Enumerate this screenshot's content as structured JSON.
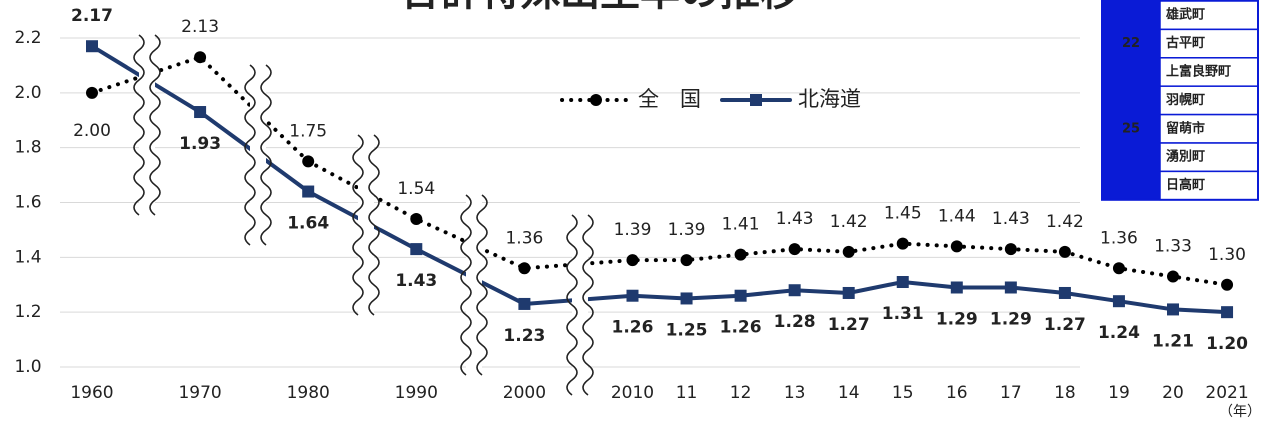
{
  "chart_data": {
    "type": "line",
    "title": "合計特殊出生率の推移",
    "x_label": "（年）",
    "categories": [
      "1960",
      "1970",
      "1980",
      "1990",
      "2000",
      "2010",
      "11",
      "12",
      "13",
      "14",
      "15",
      "16",
      "17",
      "18",
      "19",
      "20",
      "2021"
    ],
    "series": [
      {
        "name": "全　国",
        "color": "#000000",
        "style": "dotted",
        "marker": "circle",
        "values": [
          2.0,
          2.13,
          1.75,
          1.54,
          1.36,
          1.39,
          1.39,
          1.41,
          1.43,
          1.42,
          1.45,
          1.44,
          1.43,
          1.42,
          1.36,
          1.33,
          1.3
        ],
        "value_labels": [
          "2.00",
          "2.13",
          "1.75",
          "1.54",
          "1.36",
          "1.39",
          "1.39",
          "1.41",
          "1.43",
          "1.42",
          "1.45",
          "1.44",
          "1.43",
          "1.42",
          "1.36",
          "1.33",
          "1.30"
        ]
      },
      {
        "name": "北海道",
        "color": "#1f3a6e",
        "style": "solid",
        "marker": "square",
        "values": [
          2.17,
          1.93,
          1.64,
          1.43,
          1.23,
          1.26,
          1.25,
          1.26,
          1.28,
          1.27,
          1.31,
          1.29,
          1.29,
          1.27,
          1.24,
          1.21,
          1.2
        ],
        "value_labels": [
          "2.17",
          "1.93",
          "1.64",
          "1.43",
          "1.23",
          "1.26",
          "1.25",
          "1.26",
          "1.28",
          "1.27",
          "1.31",
          "1.29",
          "1.29",
          "1.27",
          "1.24",
          "1.21",
          "1.20"
        ]
      }
    ],
    "ylim": [
      1.0,
      2.2
    ],
    "yticks": [
      {
        "value": 1.0,
        "label": "1.0"
      },
      1.2,
      1.4,
      1.6,
      1.8,
      {
        "value": 2.0,
        "label": "2.0"
      },
      2.2
    ],
    "grid": true
  },
  "ranking": {
    "rows": [
      {
        "name": "雄武町"
      },
      {
        "rank": 22,
        "name": "古平町"
      },
      {
        "name": "上富良野町"
      },
      {
        "name": "羽幌町"
      },
      {
        "rank": 25,
        "name": "留萌市"
      },
      {
        "name": "湧別町"
      },
      {
        "name": "日高町"
      }
    ]
  }
}
